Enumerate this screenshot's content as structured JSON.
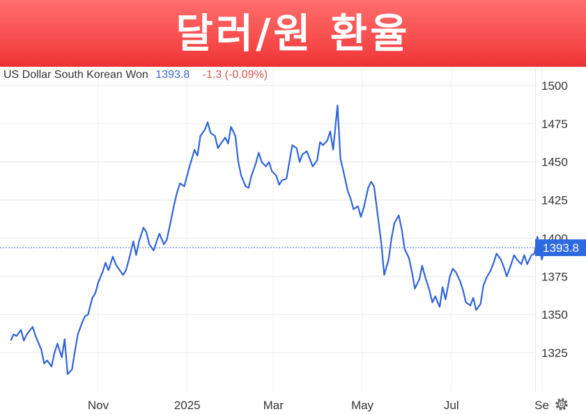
{
  "banner": {
    "title": "달러/원 환율"
  },
  "legend": {
    "series_name": "US Dollar South Korean Won",
    "last_value": "1393.8",
    "change": "-1.3 (-0.09%)"
  },
  "last_price_tag": "1393.8",
  "colors": {
    "banner": "#f24848",
    "line": "#2f63d9",
    "value_text": "#3d68d4",
    "change_text": "#d9534f",
    "price_tag": "#2d6ae0",
    "grid": "#e6e6e6"
  },
  "icons": {
    "settings": "gear-icon"
  },
  "chart_data": {
    "type": "line",
    "title": "",
    "xlabel": "",
    "ylabel": "",
    "ylim": [
      1300,
      1510
    ],
    "y_ticks": [
      1325,
      1350,
      1375,
      1400,
      1425,
      1450,
      1475,
      1500
    ],
    "x_ticks": [
      "Nov",
      "2025",
      "Mar",
      "May",
      "Jul",
      "Se"
    ],
    "grid": true,
    "last_value": 1393.8,
    "series": [
      {
        "name": "US Dollar South Korean Won",
        "points": [
          [
            "2024-09-02",
            1333
          ],
          [
            "2024-09-04",
            1337
          ],
          [
            "2024-09-06",
            1336
          ],
          [
            "2024-09-09",
            1340
          ],
          [
            "2024-09-11",
            1333
          ],
          [
            "2024-09-13",
            1337
          ],
          [
            "2024-09-17",
            1342
          ],
          [
            "2024-09-19",
            1336
          ],
          [
            "2024-09-23",
            1327
          ],
          [
            "2024-09-25",
            1318
          ],
          [
            "2024-09-27",
            1320
          ],
          [
            "2024-09-30",
            1316
          ],
          [
            "2024-10-02",
            1325
          ],
          [
            "2024-10-04",
            1331
          ],
          [
            "2024-10-07",
            1322
          ],
          [
            "2024-10-09",
            1334
          ],
          [
            "2024-10-11",
            1311
          ],
          [
            "2024-10-14",
            1314
          ],
          [
            "2024-10-16",
            1326
          ],
          [
            "2024-10-18",
            1337
          ],
          [
            "2024-10-21",
            1345
          ],
          [
            "2024-10-23",
            1349
          ],
          [
            "2024-10-25",
            1350
          ],
          [
            "2024-10-28",
            1361
          ],
          [
            "2024-10-30",
            1364
          ],
          [
            "2024-11-01",
            1371
          ],
          [
            "2024-11-04",
            1378
          ],
          [
            "2024-11-06",
            1384
          ],
          [
            "2024-11-08",
            1379
          ],
          [
            "2024-11-11",
            1388
          ],
          [
            "2024-11-13",
            1383
          ],
          [
            "2024-11-15",
            1380
          ],
          [
            "2024-11-18",
            1376
          ],
          [
            "2024-11-20",
            1379
          ],
          [
            "2024-11-22",
            1386
          ],
          [
            "2024-11-25",
            1398
          ],
          [
            "2024-11-27",
            1389
          ],
          [
            "2024-11-29",
            1398
          ],
          [
            "2024-12-02",
            1407
          ],
          [
            "2024-12-04",
            1404
          ],
          [
            "2024-12-06",
            1396
          ],
          [
            "2024-12-09",
            1392
          ],
          [
            "2024-12-11",
            1398
          ],
          [
            "2024-12-13",
            1403
          ],
          [
            "2024-12-16",
            1396
          ],
          [
            "2024-12-18",
            1399
          ],
          [
            "2024-12-20",
            1408
          ],
          [
            "2024-12-23",
            1422
          ],
          [
            "2024-12-25",
            1430
          ],
          [
            "2024-12-27",
            1436
          ],
          [
            "2024-12-30",
            1434
          ],
          [
            "2025-01-02",
            1445
          ],
          [
            "2025-01-06",
            1458
          ],
          [
            "2025-01-08",
            1454
          ],
          [
            "2025-01-10",
            1467
          ],
          [
            "2025-01-13",
            1471
          ],
          [
            "2025-01-15",
            1476
          ],
          [
            "2025-01-17",
            1469
          ],
          [
            "2025-01-20",
            1467
          ],
          [
            "2025-01-22",
            1459
          ],
          [
            "2025-01-24",
            1462
          ],
          [
            "2025-01-27",
            1466
          ],
          [
            "2025-01-29",
            1462
          ],
          [
            "2025-01-31",
            1473
          ],
          [
            "2025-02-03",
            1467
          ],
          [
            "2025-02-05",
            1450
          ],
          [
            "2025-02-07",
            1441
          ],
          [
            "2025-02-10",
            1434
          ],
          [
            "2025-02-12",
            1433
          ],
          [
            "2025-02-14",
            1441
          ],
          [
            "2025-02-17",
            1449
          ],
          [
            "2025-02-19",
            1456
          ],
          [
            "2025-02-21",
            1450
          ],
          [
            "2025-02-24",
            1447
          ],
          [
            "2025-02-26",
            1450
          ],
          [
            "2025-02-28",
            1444
          ],
          [
            "2025-03-03",
            1441
          ],
          [
            "2025-03-05",
            1435
          ],
          [
            "2025-03-07",
            1438
          ],
          [
            "2025-03-10",
            1439
          ],
          [
            "2025-03-12",
            1450
          ],
          [
            "2025-03-14",
            1461
          ],
          [
            "2025-03-17",
            1459
          ],
          [
            "2025-03-19",
            1450
          ],
          [
            "2025-03-21",
            1455
          ],
          [
            "2025-03-24",
            1457
          ],
          [
            "2025-03-26",
            1452
          ],
          [
            "2025-03-28",
            1447
          ],
          [
            "2025-03-31",
            1451
          ],
          [
            "2025-04-02",
            1463
          ],
          [
            "2025-04-04",
            1461
          ],
          [
            "2025-04-07",
            1464
          ],
          [
            "2025-04-09",
            1470
          ],
          [
            "2025-04-11",
            1458
          ],
          [
            "2025-04-14",
            1487
          ],
          [
            "2025-04-16",
            1452
          ],
          [
            "2025-04-18",
            1444
          ],
          [
            "2025-04-21",
            1431
          ],
          [
            "2025-04-23",
            1426
          ],
          [
            "2025-04-25",
            1419
          ],
          [
            "2025-04-28",
            1421
          ],
          [
            "2025-04-30",
            1414
          ],
          [
            "2025-05-02",
            1420
          ],
          [
            "2025-05-05",
            1433
          ],
          [
            "2025-05-07",
            1437
          ],
          [
            "2025-05-09",
            1434
          ],
          [
            "2025-05-12",
            1412
          ],
          [
            "2025-05-14",
            1397
          ],
          [
            "2025-05-16",
            1376
          ],
          [
            "2025-05-19",
            1386
          ],
          [
            "2025-05-21",
            1400
          ],
          [
            "2025-05-23",
            1410
          ],
          [
            "2025-05-26",
            1415
          ],
          [
            "2025-05-28",
            1406
          ],
          [
            "2025-05-30",
            1393
          ],
          [
            "2025-06-02",
            1387
          ],
          [
            "2025-06-04",
            1378
          ],
          [
            "2025-06-06",
            1367
          ],
          [
            "2025-06-09",
            1373
          ],
          [
            "2025-06-11",
            1382
          ],
          [
            "2025-06-13",
            1375
          ],
          [
            "2025-06-16",
            1366
          ],
          [
            "2025-06-18",
            1358
          ],
          [
            "2025-06-20",
            1362
          ],
          [
            "2025-06-23",
            1355
          ],
          [
            "2025-06-25",
            1368
          ],
          [
            "2025-06-27",
            1360
          ],
          [
            "2025-06-30",
            1375
          ],
          [
            "2025-07-02",
            1380
          ],
          [
            "2025-07-04",
            1378
          ],
          [
            "2025-07-07",
            1372
          ],
          [
            "2025-07-09",
            1366
          ],
          [
            "2025-07-11",
            1358
          ],
          [
            "2025-07-14",
            1356
          ],
          [
            "2025-07-16",
            1361
          ],
          [
            "2025-07-18",
            1353
          ],
          [
            "2025-07-21",
            1357
          ],
          [
            "2025-07-23",
            1369
          ],
          [
            "2025-07-25",
            1374
          ],
          [
            "2025-07-28",
            1379
          ],
          [
            "2025-07-30",
            1384
          ],
          [
            "2025-08-01",
            1390
          ],
          [
            "2025-08-04",
            1386
          ],
          [
            "2025-08-06",
            1381
          ],
          [
            "2025-08-08",
            1375
          ],
          [
            "2025-08-11",
            1383
          ],
          [
            "2025-08-13",
            1389
          ],
          [
            "2025-08-15",
            1386
          ],
          [
            "2025-08-18",
            1383
          ],
          [
            "2025-08-20",
            1389
          ],
          [
            "2025-08-22",
            1383
          ],
          [
            "2025-08-25",
            1389
          ],
          [
            "2025-08-27",
            1390
          ],
          [
            "2025-08-29",
            1401
          ],
          [
            "2025-09-01",
            1386
          ],
          [
            "2025-09-03",
            1393
          ],
          [
            "2025-09-05",
            1393.8
          ]
        ]
      }
    ]
  }
}
